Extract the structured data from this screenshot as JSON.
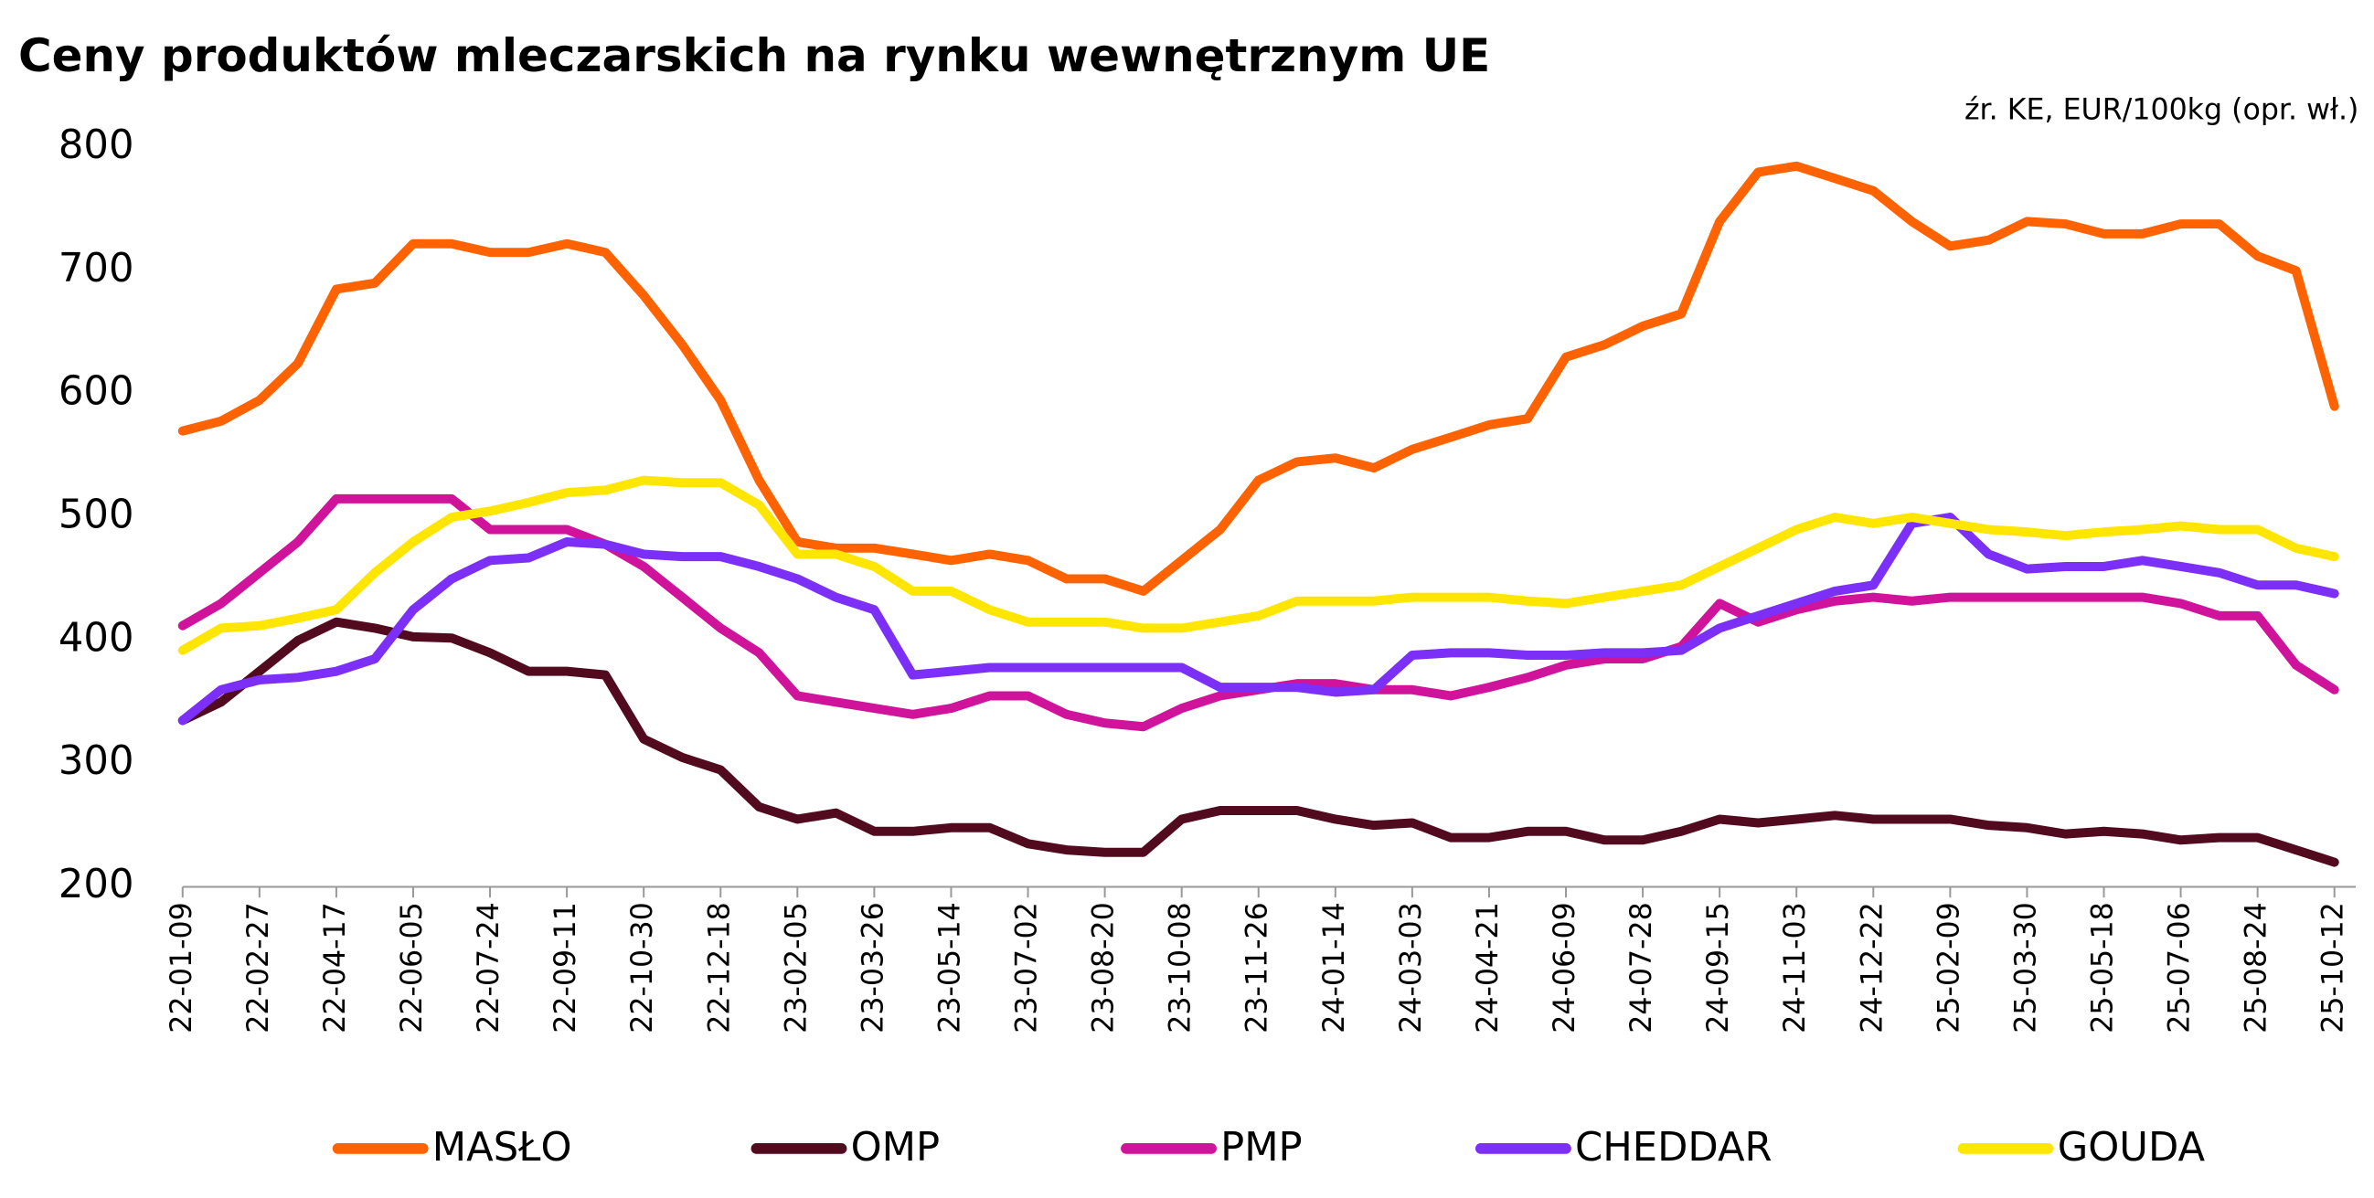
{
  "chart_data": {
    "type": "line",
    "title": "Ceny produktów mleczarskich na rynku wewnętrznym UE",
    "subtitle": "źr. KE, EUR/100kg (opr. wł.)",
    "categories": [
      "22-01-09",
      null,
      "22-02-27",
      null,
      "22-04-17",
      null,
      "22-06-05",
      null,
      "22-07-24",
      null,
      "22-09-11",
      null,
      "22-10-30",
      null,
      "22-12-18",
      null,
      "23-02-05",
      null,
      "23-03-26",
      null,
      "23-05-14",
      null,
      "23-07-02",
      null,
      "23-08-20",
      null,
      "23-10-08",
      null,
      "23-11-26",
      null,
      "24-01-14",
      null,
      "24-03-03",
      null,
      "24-04-21",
      null,
      "24-06-09",
      null,
      "24-07-28",
      null,
      "24-09-15",
      null,
      "24-11-03",
      null,
      "24-12-22",
      null,
      "25-02-09",
      null,
      "25-03-30",
      null,
      "25-05-18",
      null,
      "25-07-06",
      null,
      "25-08-24",
      null,
      "25-10-12"
    ],
    "ylim": [
      200,
      800
    ],
    "yticks": [
      200,
      300,
      400,
      500,
      600,
      700,
      800
    ],
    "grid": false,
    "legend": "bottom",
    "series": [
      {
        "name": "MASŁO",
        "color": "#ff6200",
        "values": [
          570,
          578,
          595,
          625,
          685,
          690,
          722,
          722,
          715,
          715,
          722,
          715,
          680,
          640,
          595,
          530,
          480,
          475,
          475,
          470,
          465,
          470,
          465,
          450,
          450,
          440,
          465,
          490,
          530,
          545,
          548,
          540,
          555,
          565,
          575,
          580,
          630,
          640,
          655,
          665,
          740,
          780,
          785,
          775,
          765,
          740,
          720,
          725,
          740,
          738,
          730,
          730,
          738,
          738,
          712,
          700,
          590
        ]
      },
      {
        "name": "OMP",
        "color": "#520a1e",
        "values": [
          335,
          350,
          375,
          400,
          415,
          410,
          403,
          402,
          390,
          375,
          375,
          372,
          320,
          305,
          295,
          265,
          255,
          260,
          245,
          245,
          248,
          248,
          235,
          230,
          228,
          228,
          255,
          262,
          262,
          262,
          255,
          250,
          252,
          240,
          240,
          245,
          245,
          238,
          238,
          245,
          255,
          252,
          255,
          258,
          255,
          255,
          255,
          250,
          248,
          243,
          245,
          243,
          238,
          240,
          240,
          230,
          220
        ]
      },
      {
        "name": "PMP",
        "color": "#d0139b",
        "values": [
          412,
          430,
          455,
          480,
          515,
          515,
          515,
          515,
          490,
          490,
          490,
          478,
          460,
          435,
          410,
          390,
          355,
          350,
          345,
          340,
          345,
          355,
          355,
          340,
          333,
          330,
          345,
          355,
          360,
          365,
          365,
          360,
          360,
          355,
          362,
          370,
          380,
          385,
          385,
          395,
          430,
          415,
          425,
          432,
          435,
          432,
          435,
          435,
          435,
          435,
          435,
          435,
          430,
          420,
          420,
          380,
          360
        ]
      },
      {
        "name": "CHEDDAR",
        "color": "#7b2ff7",
        "values": [
          335,
          360,
          368,
          370,
          375,
          385,
          425,
          450,
          465,
          467,
          480,
          478,
          470,
          468,
          468,
          460,
          450,
          435,
          425,
          372,
          375,
          378,
          378,
          378,
          378,
          378,
          378,
          362,
          362,
          362,
          358,
          360,
          388,
          390,
          390,
          388,
          388,
          390,
          390,
          392,
          410,
          420,
          430,
          440,
          445,
          495,
          500,
          470,
          458,
          460,
          460,
          465,
          460,
          455,
          445,
          445,
          438
        ]
      },
      {
        "name": "GOUDA",
        "color": "#ffe600",
        "values": [
          392,
          410,
          412,
          418,
          425,
          455,
          480,
          500,
          505,
          512,
          520,
          522,
          530,
          528,
          528,
          510,
          470,
          470,
          460,
          440,
          440,
          425,
          415,
          415,
          415,
          410,
          410,
          415,
          420,
          432,
          432,
          432,
          435,
          435,
          435,
          432,
          430,
          435,
          440,
          445,
          460,
          475,
          490,
          500,
          495,
          500,
          495,
          490,
          488,
          485,
          488,
          490,
          493,
          490,
          490,
          475,
          468
        ]
      }
    ]
  }
}
